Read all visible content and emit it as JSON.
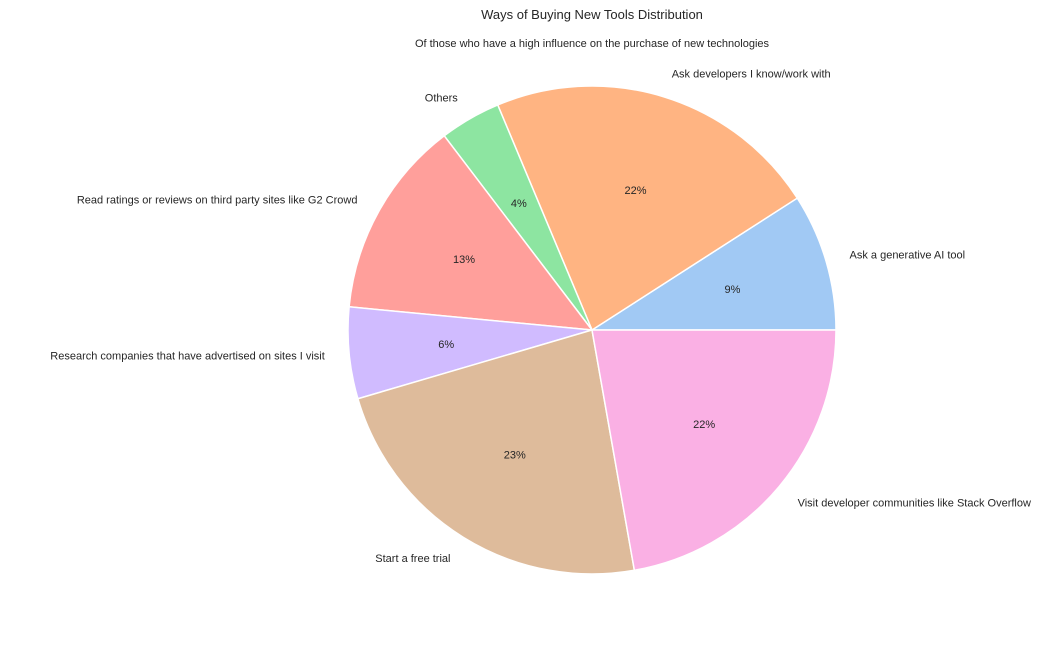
{
  "chart_data": {
    "type": "pie",
    "title": "Ways of Buying New Tools Distribution",
    "subtitle": "Of those who have a high influence on the purchase of new technologies",
    "start_angle_deg": 0,
    "direction": "counterclockwise",
    "slices": [
      {
        "label": "Ask a generative AI tool",
        "value": 9,
        "pct_label": "9%",
        "color": "#a1c9f4"
      },
      {
        "label": "Ask developers I know/work with",
        "value": 22,
        "pct_label": "22%",
        "color": "#ffb482"
      },
      {
        "label": "Others",
        "value": 4,
        "pct_label": "4%",
        "color": "#8de5a1"
      },
      {
        "label": "Read ratings or reviews on third party sites like G2 Crowd",
        "value": 13,
        "pct_label": "13%",
        "color": "#ff9f9b"
      },
      {
        "label": "Research companies that have advertised on sites I visit",
        "value": 6,
        "pct_label": "6%",
        "color": "#d0bbff"
      },
      {
        "label": "Start a free trial",
        "value": 23,
        "pct_label": "23%",
        "color": "#debb9b"
      },
      {
        "label": "Visit developer communities like Stack Overflow",
        "value": 22,
        "pct_label": "22%",
        "color": "#fab0e4"
      }
    ]
  }
}
